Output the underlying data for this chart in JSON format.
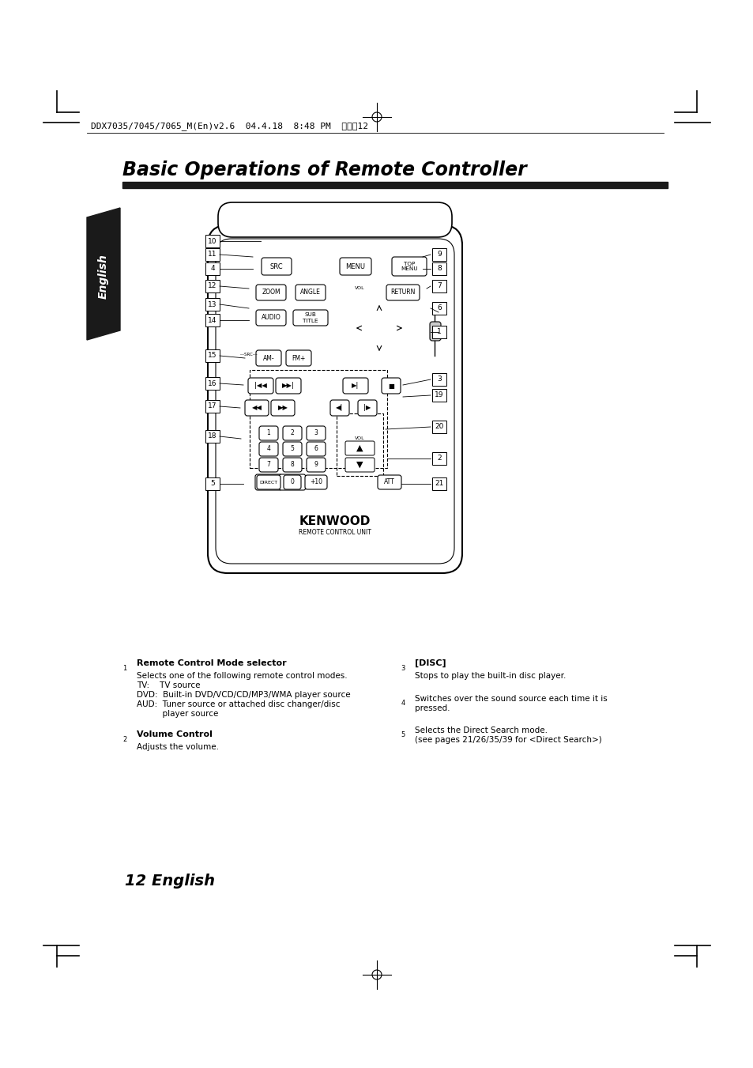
{
  "title": "Basic Operations of Remote Controller",
  "page_number": "12 English",
  "header_text": "DDX7035/7045/7065_M(En)v2.6  04.4.18  8:48 PM  ページ12",
  "bg_color": "#ffffff",
  "section1_title": "Remote Control Mode selector",
  "section1_num": "1",
  "section1_body": [
    "Selects one of the following remote control modes.",
    "TV:    TV source",
    "DVD:  Built-in DVD/VCD/CD/MP3/WMA player source",
    "AUD:  Tuner source or attached disc changer/disc",
    "          player source"
  ],
  "section2_num": "2",
  "section2_title": "Volume Control",
  "section2_body": "Adjusts the volume.",
  "section3_num": "3",
  "section3_title": "[DISC]",
  "section3_body": "Stops to play the built-in disc player.",
  "section4_num": "4",
  "section4_body": "Switches over the sound source each time it is\npressed.",
  "section5_num": "5",
  "section5_body": "Selects the Direct Search mode.\n(see pages 21/26/35/39 for <Direct Search>)"
}
